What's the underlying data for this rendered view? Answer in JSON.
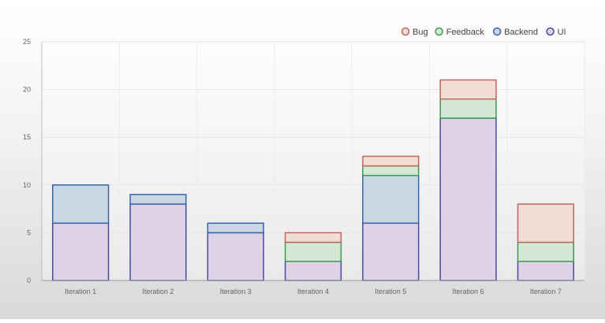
{
  "chart_data": {
    "type": "bar",
    "stacked": true,
    "categories": [
      "Iteration 1",
      "Iteration 2",
      "Iteration 3",
      "Iteration 4",
      "Iteration 5",
      "Iteration 6",
      "Iteration 7"
    ],
    "series": [
      {
        "name": "UI",
        "values": [
          6,
          8,
          5,
          2,
          6,
          17,
          2
        ],
        "stroke": "#4b4aa0",
        "fill": "#ddd2e6"
      },
      {
        "name": "Backend",
        "values": [
          4,
          1,
          1,
          0,
          5,
          0,
          0
        ],
        "stroke": "#3a64a8",
        "fill": "#c9d6e3"
      },
      {
        "name": "Feedback",
        "values": [
          0,
          0,
          0,
          2,
          1,
          2,
          2
        ],
        "stroke": "#3f9a55",
        "fill": "#d3e9d5"
      },
      {
        "name": "Bug",
        "values": [
          0,
          0,
          0,
          1,
          1,
          2,
          4
        ],
        "stroke": "#c0665b",
        "fill": "#f1ddd6"
      }
    ],
    "legend_order": [
      "Bug",
      "Feedback",
      "Backend",
      "UI"
    ],
    "y_ticks": [
      "0",
      "5",
      "10",
      "15",
      "20",
      "25"
    ],
    "ylim": [
      0,
      25
    ],
    "grid": true,
    "legend_position": "top-right",
    "title": "",
    "xlabel": "",
    "ylabel": ""
  }
}
